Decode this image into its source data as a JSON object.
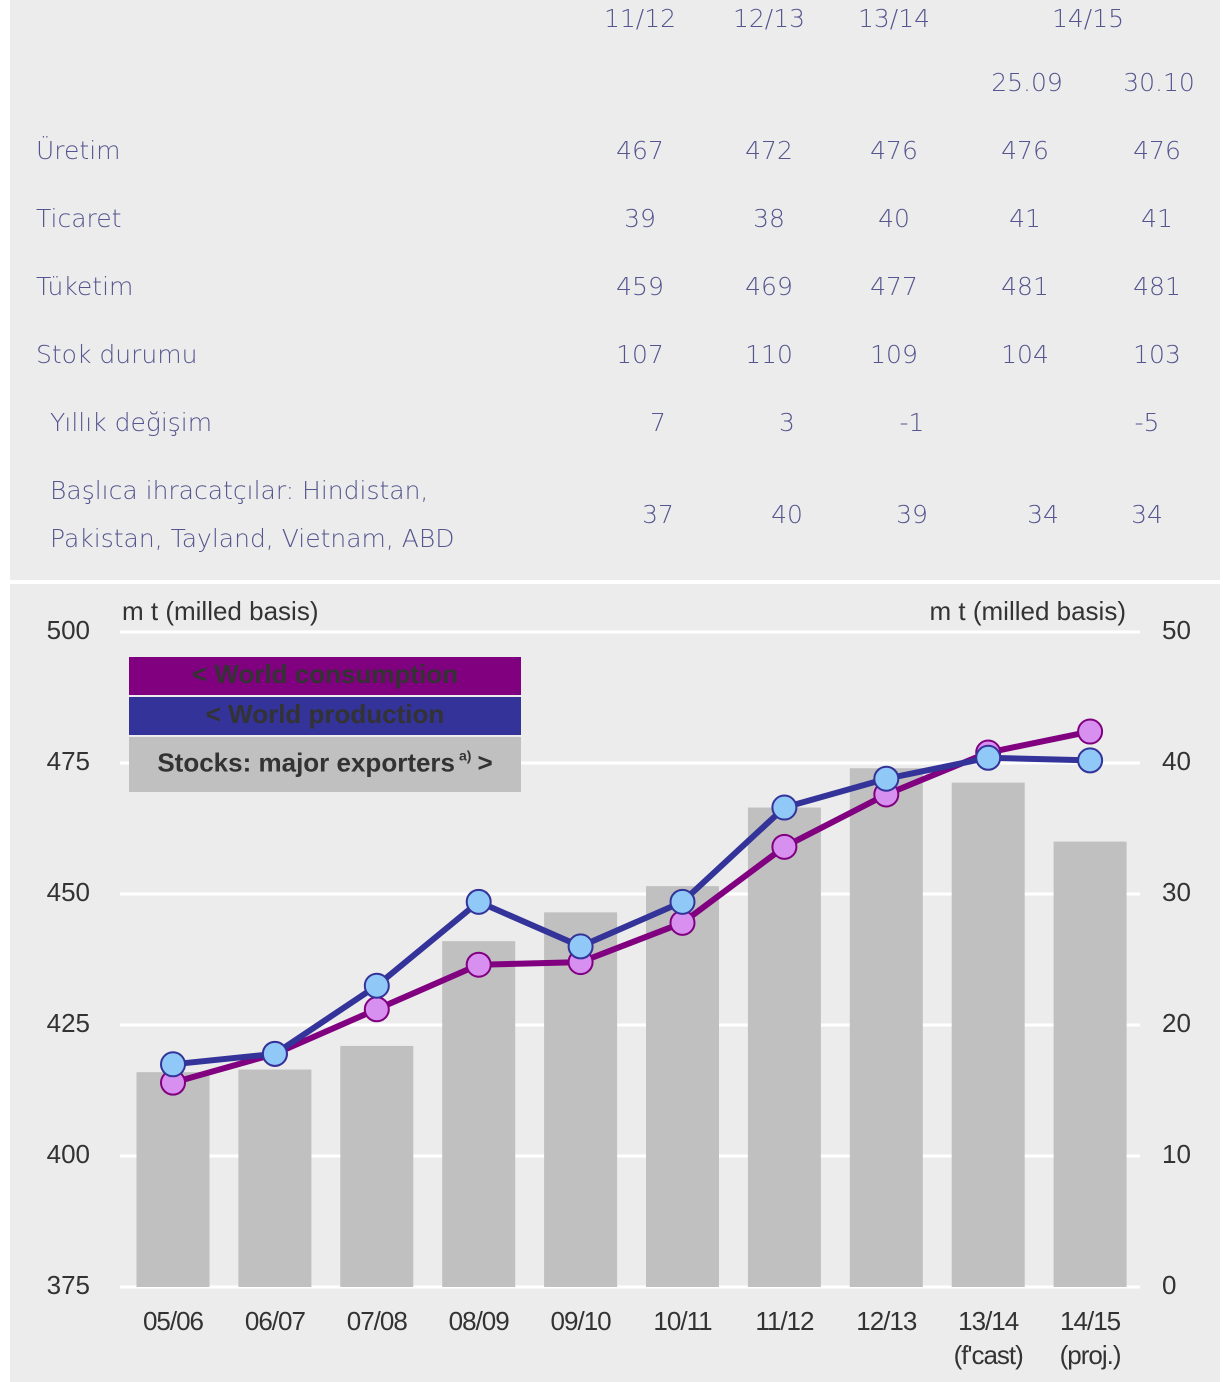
{
  "table": {
    "columns": [
      "11/12",
      "12/13",
      "13/14",
      "14/15"
    ],
    "subcolumns": [
      null,
      null,
      null,
      "25.09",
      "30.10"
    ],
    "rows": [
      {
        "label": [
          "Üretim"
        ],
        "values": [
          467,
          472,
          476,
          476,
          476
        ]
      },
      {
        "label": [
          "Ticaret"
        ],
        "values": [
          39,
          38,
          40,
          41,
          41
        ]
      },
      {
        "label": [
          "Tüketim"
        ],
        "values": [
          459,
          469,
          477,
          481,
          481
        ]
      },
      {
        "label": [
          "Stok durumu"
        ],
        "values": [
          107,
          110,
          109,
          104,
          103
        ]
      },
      {
        "label": [
          "Yıllık değişim"
        ],
        "values": [
          7,
          3,
          -1,
          null,
          -5
        ]
      },
      {
        "label": [
          "Başlıca ihracatçılar: Hindistan,",
          "Pakistan, Tayland, Vietnam, ABD"
        ],
        "values": [
          37,
          40,
          39,
          34,
          34
        ]
      }
    ]
  },
  "chart_data": {
    "type": "bar_line",
    "ylabel": "m t (milled basis)",
    "y2label": "m t (milled basis)",
    "categories": [
      "05/06",
      "06/07",
      "07/08",
      "08/09",
      "09/10",
      "10/11",
      "11/12",
      "12/13",
      "13/14",
      "14/15"
    ],
    "sublabels": [
      null,
      null,
      null,
      null,
      null,
      null,
      null,
      null,
      "(f'cast)",
      "(proj.)"
    ],
    "ylim": [
      375,
      500
    ],
    "yticks": [
      375,
      400,
      425,
      450,
      475,
      500
    ],
    "y2lim": [
      0,
      50
    ],
    "y2ticks": [
      0,
      10,
      20,
      30,
      40,
      50
    ],
    "grid": true,
    "series": [
      {
        "name": "< World consumption",
        "color": "#800080",
        "marker": "#d890f0",
        "kind": "line",
        "values": [
          414,
          419.5,
          428,
          436.5,
          437,
          444.5,
          459,
          469,
          477,
          481
        ]
      },
      {
        "name": "< World production",
        "color": "#333399",
        "marker": "#90c8f8",
        "kind": "line",
        "values": [
          417.5,
          419.5,
          432.5,
          448.5,
          440,
          448.5,
          466.5,
          472,
          476,
          475.5
        ]
      },
      {
        "name": "Stocks: major exporters",
        "note": "a)",
        "suffix": ">",
        "color": "#c0c0c0",
        "kind": "bar",
        "axis": "y2",
        "values": [
          16.4,
          16.6,
          18.4,
          26.4,
          28.6,
          30.6,
          36.6,
          39.6,
          38.5,
          34
        ]
      }
    ]
  }
}
